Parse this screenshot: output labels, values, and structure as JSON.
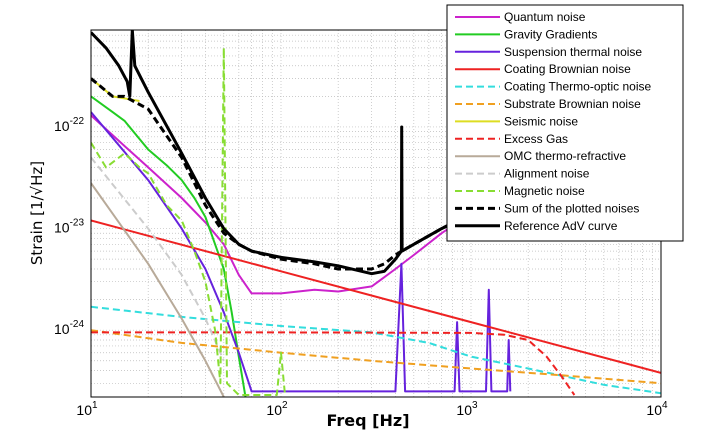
{
  "chart_data": {
    "type": "line",
    "title": "",
    "xlabel": "Freq [Hz]",
    "ylabel": "Strain [1/√Hz]",
    "xscale": "log",
    "yscale": "log",
    "xlim": [
      10,
      10000
    ],
    "ylim": [
      2.2e-25,
      9e-22
    ],
    "grid": true,
    "legend_position": "top-right",
    "x_ticks": [
      {
        "base": "10",
        "exp": "1",
        "value": 10
      },
      {
        "base": "10",
        "exp": "2",
        "value": 100
      },
      {
        "base": "10",
        "exp": "3",
        "value": 1000
      },
      {
        "base": "10",
        "exp": "4",
        "value": 10000
      }
    ],
    "y_ticks": [
      {
        "base": "10",
        "exp": "-24",
        "value": 1e-24
      },
      {
        "base": "10",
        "exp": "-23",
        "value": 1e-23
      },
      {
        "base": "10",
        "exp": "-22",
        "value": 1e-22
      }
    ],
    "series": [
      {
        "name": "Quantum noise",
        "color": "#cc22cc",
        "dash": "solid",
        "points": [
          [
            10,
            1.3e-22
          ],
          [
            15,
            6.5e-23
          ],
          [
            20,
            4e-23
          ],
          [
            30,
            2e-23
          ],
          [
            40,
            1.15e-23
          ],
          [
            50,
            7e-24
          ],
          [
            60,
            3.5e-24
          ],
          [
            70,
            2.3e-24
          ],
          [
            100,
            2.3e-24
          ],
          [
            150,
            2.5e-24
          ],
          [
            200,
            2.4e-24
          ],
          [
            300,
            2.7e-24
          ],
          [
            400,
            4e-24
          ],
          [
            500,
            5.5e-24
          ],
          [
            700,
            9e-24
          ],
          [
            1000,
            1.4e-23
          ],
          [
            1300,
            1.9e-23
          ]
        ]
      },
      {
        "name": "Gravity Gradients",
        "color": "#22cc22",
        "dash": "solid",
        "points": [
          [
            10,
            2e-22
          ],
          [
            13,
            1.4e-22
          ],
          [
            15,
            1.15e-22
          ],
          [
            20,
            6e-23
          ],
          [
            25,
            4.2e-23
          ],
          [
            30,
            3e-23
          ],
          [
            35,
            2e-23
          ],
          [
            40,
            1.3e-23
          ],
          [
            45,
            7e-24
          ],
          [
            50,
            4e-24
          ],
          [
            55,
            1.5e-24
          ],
          [
            60,
            5.5e-25
          ],
          [
            65,
            2.2e-25
          ]
        ]
      },
      {
        "name": "Suspension thermal noise",
        "color": "#6622dd",
        "dash": "solid",
        "points": [
          [
            10,
            1.4e-22
          ],
          [
            20,
            3e-23
          ],
          [
            30,
            1e-23
          ],
          [
            40,
            4e-24
          ],
          [
            50,
            1.5e-24
          ],
          [
            60,
            6e-25
          ],
          [
            70,
            2.5e-25
          ],
          [
            400,
            2.5e-25
          ],
          [
            430,
            4.5e-24
          ],
          [
            450,
            2.5e-25
          ],
          [
            820,
            2.5e-25
          ],
          [
            845,
            1.2e-24
          ],
          [
            870,
            2.5e-25
          ],
          [
            1200,
            2.5e-25
          ],
          [
            1240,
            2.5e-24
          ],
          [
            1280,
            2.5e-25
          ],
          [
            1550,
            2.5e-25
          ],
          [
            1580,
            8e-25
          ],
          [
            1610,
            2.5e-25
          ]
        ]
      },
      {
        "name": "Coating Brownian noise",
        "color": "#ee2222",
        "dash": "solid",
        "points": [
          [
            10,
            1.2e-23
          ],
          [
            100,
            3.8e-24
          ],
          [
            1000,
            1.2e-24
          ],
          [
            10000,
            3.8e-25
          ]
        ]
      },
      {
        "name": "Coating Thermo-optic noise",
        "color": "#33dddd",
        "dash": "dash",
        "points": [
          [
            10,
            1.7e-24
          ],
          [
            30,
            1.35e-24
          ],
          [
            100,
            1.1e-24
          ],
          [
            300,
            9.5e-25
          ],
          [
            600,
            7.5e-25
          ],
          [
            1000,
            5.5e-25
          ],
          [
            2000,
            4.2e-25
          ],
          [
            5000,
            2.9e-25
          ],
          [
            10000,
            2.4e-25
          ]
        ]
      },
      {
        "name": "Substrate Brownian noise",
        "color": "#f0a020",
        "dash": "dash",
        "points": [
          [
            10,
            1e-24
          ],
          [
            30,
            7.5e-25
          ],
          [
            100,
            6e-25
          ],
          [
            300,
            5e-25
          ],
          [
            1000,
            4.2e-25
          ],
          [
            3000,
            3.6e-25
          ],
          [
            10000,
            3e-25
          ]
        ]
      },
      {
        "name": "Seismic noise",
        "color": "#dddd22",
        "dash": "solid",
        "points": [
          [
            10,
            3e-22
          ],
          [
            13,
            2e-22
          ],
          [
            18,
            1.8e-22
          ]
        ]
      },
      {
        "name": "Excess Gas",
        "color": "#ee2222",
        "dash": "dash",
        "points": [
          [
            10,
            9.5e-25
          ],
          [
            100,
            9.5e-25
          ],
          [
            1000,
            9.4e-25
          ],
          [
            1500,
            9e-25
          ],
          [
            2000,
            8e-25
          ],
          [
            2500,
            5.5e-25
          ],
          [
            3000,
            3.5e-25
          ],
          [
            3500,
            2.3e-25
          ]
        ]
      },
      {
        "name": "OMC thermo-refractive",
        "color": "#b8aa99",
        "dash": "solid",
        "points": [
          [
            10,
            2.8e-23
          ],
          [
            20,
            4.5e-24
          ],
          [
            30,
            1.3e-24
          ],
          [
            40,
            5e-25
          ],
          [
            50,
            2.2e-25
          ]
        ]
      },
      {
        "name": "Alignment noise",
        "color": "#cccccc",
        "dash": "dash",
        "points": [
          [
            10,
            5e-23
          ],
          [
            20,
            1e-23
          ],
          [
            30,
            3.5e-24
          ],
          [
            40,
            1.3e-24
          ],
          [
            50,
            5e-25
          ]
        ]
      },
      {
        "name": "Magnetic noise",
        "color": "#88dd33",
        "dash": "dash",
        "points": [
          [
            10,
            7e-23
          ],
          [
            12,
            4e-23
          ],
          [
            15,
            5.5e-23
          ],
          [
            18,
            4e-23
          ],
          [
            20,
            3.5e-23
          ],
          [
            25,
            1.7e-23
          ],
          [
            30,
            1.2e-23
          ],
          [
            35,
            6e-24
          ],
          [
            40,
            3e-24
          ],
          [
            45,
            1e-24
          ],
          [
            48,
            3e-25
          ],
          [
            50,
            6e-22
          ],
          [
            52,
            3e-25
          ],
          [
            60,
            2.3e-25
          ],
          [
            95,
            2.3e-25
          ],
          [
            100,
            6e-25
          ],
          [
            105,
            2.3e-25
          ]
        ]
      },
      {
        "name": "Sum of the plotted noises",
        "color": "#000000",
        "dash": "dash",
        "points": [
          [
            10,
            3e-22
          ],
          [
            13,
            2e-22
          ],
          [
            15,
            2e-22
          ],
          [
            20,
            1.5e-22
          ],
          [
            30,
            5e-23
          ],
          [
            40,
            1.7e-23
          ],
          [
            50,
            9e-24
          ],
          [
            60,
            7e-24
          ],
          [
            70,
            6e-24
          ],
          [
            100,
            5e-24
          ],
          [
            150,
            4.5e-24
          ],
          [
            200,
            4e-24
          ],
          [
            300,
            4e-24
          ],
          [
            350,
            4.5e-24
          ],
          [
            400,
            5.5e-24
          ],
          [
            430,
            6e-24
          ],
          [
            500,
            7e-24
          ],
          [
            700,
            1e-23
          ],
          [
            1000,
            1.4e-23
          ],
          [
            1300,
            1.8e-23
          ]
        ]
      },
      {
        "name": "Reference AdV curve",
        "color": "#000000",
        "dash": "solid",
        "points": [
          [
            10,
            8.5e-22
          ],
          [
            12,
            6e-22
          ],
          [
            14,
            4e-22
          ],
          [
            15.5,
            2.8e-22
          ],
          [
            16,
            2e-22
          ],
          [
            16.5,
            9e-22
          ],
          [
            17,
            4e-22
          ],
          [
            20,
            2.2e-22
          ],
          [
            30,
            5.5e-23
          ],
          [
            40,
            2e-23
          ],
          [
            50,
            1e-23
          ],
          [
            60,
            7e-24
          ],
          [
            70,
            6e-24
          ],
          [
            100,
            5.2e-24
          ],
          [
            150,
            4.7e-24
          ],
          [
            200,
            4.3e-24
          ],
          [
            300,
            3.6e-24
          ],
          [
            350,
            3.8e-24
          ],
          [
            400,
            5e-24
          ],
          [
            430,
            6e-24
          ],
          [
            432,
            1e-22
          ],
          [
            434,
            6e-24
          ],
          [
            500,
            7e-24
          ],
          [
            700,
            1e-23
          ],
          [
            1000,
            1.4e-23
          ],
          [
            1300,
            1.8e-23
          ]
        ]
      }
    ]
  }
}
